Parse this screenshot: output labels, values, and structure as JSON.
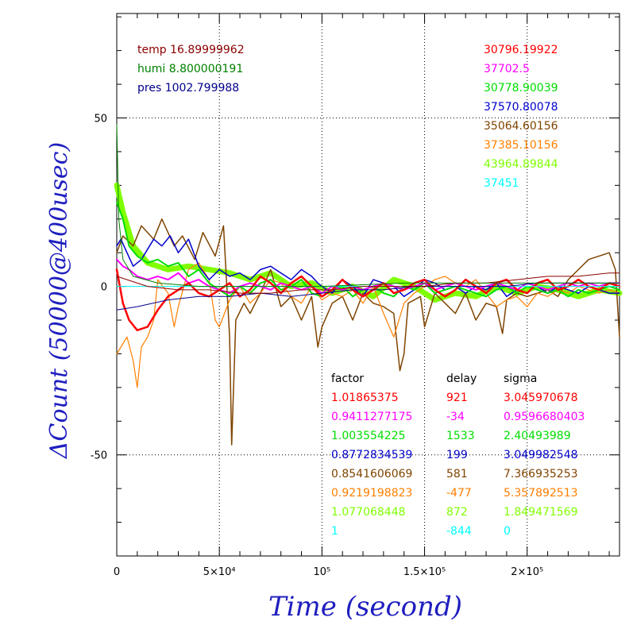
{
  "chart_data": {
    "type": "line",
    "xlabel": "Time (second)",
    "ylabel": "ΔCount (50000@400usec)",
    "xlim": [
      0,
      245000
    ],
    "ylim": [
      -80,
      81
    ],
    "grid": true,
    "x_ticks": [
      {
        "value": 0,
        "label": "0"
      },
      {
        "value": 50000,
        "label": "5×10⁴"
      },
      {
        "value": 100000,
        "label": "10⁵"
      },
      {
        "value": 150000,
        "label": "1.5×10⁵"
      },
      {
        "value": 200000,
        "label": "2×10⁵"
      }
    ],
    "y_ticks": [
      {
        "value": 50,
        "label": "50"
      },
      {
        "value": 0,
        "label": "0"
      },
      {
        "value": -50,
        "label": "-50"
      }
    ],
    "env_labels": [
      {
        "text": "temp 16.89999962",
        "color": "#8b0000"
      },
      {
        "text": "humi 8.800000191",
        "color": "#008000"
      },
      {
        "text": "pres 1002.799988",
        "color": "#00008b"
      }
    ],
    "means": [
      {
        "text": "30796.19922",
        "color": "#ff0000"
      },
      {
        "text": "37702.5",
        "color": "#ff00ff"
      },
      {
        "text": "30778.90039",
        "color": "#00dd00"
      },
      {
        "text": "37570.80078",
        "color": "#0000cc"
      },
      {
        "text": "35064.60156",
        "color": "#7f4400"
      },
      {
        "text": "37385.10156",
        "color": "#ff7f00"
      },
      {
        "text": "43964.89844",
        "color": "#7fff00"
      },
      {
        "text": "37451",
        "color": "#00ffff"
      }
    ],
    "table_headers": [
      "factor",
      "delay",
      "sigma"
    ],
    "table_rows": [
      {
        "factor": "1.01865375",
        "delay": "921",
        "sigma": "3.045970678",
        "color": "#ff0000"
      },
      {
        "factor": "0.9411277175",
        "delay": "-34",
        "sigma": "0.9596680403",
        "color": "#ff00ff"
      },
      {
        "factor": "1.003554225",
        "delay": "1533",
        "sigma": "2.40493989",
        "color": "#00dd00"
      },
      {
        "factor": "0.8772834539",
        "delay": "199",
        "sigma": "3.049982548",
        "color": "#0000cc"
      },
      {
        "factor": "0.8541606069",
        "delay": "581",
        "sigma": "7.366935253",
        "color": "#7f4400"
      },
      {
        "factor": "0.9219198823",
        "delay": "-477",
        "sigma": "5.357892513",
        "color": "#ff7f00"
      },
      {
        "factor": "1.077068448",
        "delay": "872",
        "sigma": "1.849471569",
        "color": "#7fff00"
      },
      {
        "factor": "1",
        "delay": "-844",
        "sigma": "0",
        "color": "#00ffff"
      }
    ],
    "series": [
      {
        "color": "#7fff00",
        "width": 7,
        "x": [
          0,
          3000,
          8000,
          15000,
          25000,
          35000,
          45000,
          55000,
          65000,
          75000,
          85000,
          95000,
          105000,
          115000,
          125000,
          135000,
          145000,
          155000,
          165000,
          175000,
          185000,
          195000,
          205000,
          215000,
          225000,
          235000,
          245000
        ],
        "y": [
          30,
          22,
          12,
          7,
          5,
          6,
          5,
          4,
          2,
          4,
          0,
          1,
          -2,
          0,
          -3,
          2,
          0,
          -4,
          -2,
          -3,
          0,
          -2,
          0,
          -1,
          -3,
          -1,
          -2
        ]
      },
      {
        "color": "#7f4400",
        "width": 1.5,
        "x": [
          0,
          3000,
          8000,
          12000,
          18000,
          22000,
          28000,
          32000,
          38000,
          42000,
          48000,
          52000,
          55000,
          56000,
          58000,
          62000,
          65000,
          70000,
          75000,
          80000,
          85000,
          90000,
          95000,
          98000,
          100000,
          105000,
          110000,
          115000,
          120000,
          125000,
          130000,
          135000,
          138000,
          140000,
          142000,
          148000,
          150000,
          152000,
          155000,
          160000,
          165000,
          170000,
          175000,
          180000,
          185000,
          188000,
          190000,
          195000,
          200000,
          205000,
          210000,
          215000,
          220000,
          225000,
          230000,
          235000,
          240000,
          243000,
          245000
        ],
        "y": [
          10,
          15,
          12,
          18,
          14,
          20,
          12,
          15,
          8,
          16,
          9,
          18,
          -15,
          -47,
          -10,
          -5,
          -8,
          -2,
          5,
          -6,
          -3,
          -10,
          -3,
          -18,
          -12,
          -5,
          -3,
          -10,
          -2,
          -5,
          -6,
          -8,
          -25,
          -20,
          -5,
          -3,
          -12,
          -8,
          -2,
          -5,
          -8,
          -2,
          -10,
          -5,
          -6,
          -14,
          -4,
          -2,
          -3,
          -2,
          -1,
          -3,
          2,
          5,
          8,
          9,
          10,
          5,
          -15
        ]
      },
      {
        "color": "#ff7f00",
        "width": 1.2,
        "x": [
          0,
          2000,
          5000,
          8000,
          10000,
          12000,
          15000,
          18000,
          20000,
          25000,
          28000,
          30000,
          35000,
          40000,
          45000,
          48000,
          50000,
          55000,
          60000,
          65000,
          70000,
          75000,
          80000,
          85000,
          90000,
          95000,
          100000,
          105000,
          110000,
          115000,
          120000,
          125000,
          130000,
          135000,
          140000,
          145000,
          150000,
          155000,
          160000,
          165000,
          170000,
          175000,
          180000,
          185000,
          190000,
          195000,
          200000,
          205000,
          210000,
          215000,
          220000,
          225000,
          230000,
          235000,
          240000,
          245000
        ],
        "y": [
          -20,
          -18,
          -15,
          -22,
          -30,
          -18,
          -15,
          -10,
          2,
          -2,
          -12,
          -6,
          5,
          7,
          2,
          -10,
          -12,
          -4,
          0,
          -5,
          -2,
          2,
          1,
          -3,
          -5,
          0,
          -4,
          -2,
          -3,
          -1,
          -5,
          0,
          -8,
          -15,
          -5,
          -2,
          0,
          2,
          3,
          1,
          0,
          2,
          -2,
          -6,
          -4,
          -3,
          -6,
          -2,
          -3,
          -1,
          -2,
          0,
          -1,
          -2,
          -1,
          -2
        ]
      },
      {
        "color": "#0000cc",
        "width": 1.5,
        "x": [
          0,
          2000,
          5000,
          8000,
          12000,
          18000,
          22000,
          26000,
          30000,
          35000,
          40000,
          45000,
          50000,
          55000,
          60000,
          65000,
          70000,
          75000,
          80000,
          85000,
          90000,
          95000,
          98000,
          100000,
          105000,
          110000,
          115000,
          120000,
          125000,
          130000,
          135000,
          140000,
          145000,
          150000,
          155000,
          160000,
          165000,
          170000,
          175000,
          180000,
          185000,
          190000,
          195000,
          200000,
          205000,
          210000,
          215000,
          220000,
          225000,
          230000,
          235000,
          240000,
          245000
        ],
        "y": [
          12,
          14,
          10,
          6,
          8,
          14,
          12,
          15,
          10,
          14,
          6,
          2,
          5,
          3,
          4,
          2,
          5,
          6,
          4,
          2,
          5,
          3,
          1,
          0,
          -2,
          2,
          0,
          -3,
          2,
          1,
          0,
          -3,
          -1,
          2,
          1,
          -1,
          0,
          -2,
          0,
          -1,
          1,
          -3,
          -1,
          1,
          0,
          -2,
          0,
          -1,
          -2,
          0,
          -1,
          -2,
          -2
        ]
      },
      {
        "color": "#00dd00",
        "width": 2,
        "x": [
          0,
          3000,
          6000,
          10000,
          15000,
          20000,
          25000,
          30000,
          35000,
          40000,
          45000,
          50000,
          55000,
          60000,
          65000,
          70000,
          75000,
          80000,
          85000,
          90000,
          95000,
          100000,
          105000,
          110000,
          115000,
          120000,
          125000,
          130000,
          135000,
          140000,
          145000,
          150000,
          155000,
          160000,
          165000,
          170000,
          175000,
          180000,
          185000,
          190000,
          195000,
          200000,
          205000,
          210000,
          215000,
          220000,
          225000,
          230000,
          235000,
          240000,
          245000
        ],
        "y": [
          25,
          20,
          12,
          9,
          7,
          8,
          6,
          7,
          3,
          5,
          1,
          -1,
          -3,
          0,
          -2,
          1,
          2,
          -1,
          0,
          2,
          -2,
          -3,
          -1,
          0,
          -3,
          -1,
          0,
          -2,
          -3,
          0,
          -1,
          1,
          -2,
          -1,
          0,
          -1,
          -2,
          -3,
          -1,
          0,
          -2,
          0,
          -1,
          -2,
          -1,
          -3,
          -1,
          -2,
          -1,
          0,
          -1
        ]
      },
      {
        "color": "#ff00ff",
        "width": 2,
        "x": [
          0,
          3000,
          6000,
          10000,
          15000,
          20000,
          25000,
          30000,
          35000,
          40000,
          45000,
          50000,
          55000,
          60000,
          65000,
          70000,
          75000,
          80000,
          85000,
          90000,
          95000,
          100000,
          105000,
          110000,
          115000,
          120000,
          125000,
          130000,
          135000,
          140000,
          145000,
          150000,
          155000,
          160000,
          165000,
          170000,
          175000,
          180000,
          185000,
          190000,
          195000,
          200000,
          205000,
          210000,
          215000,
          220000,
          225000,
          230000,
          235000,
          240000,
          245000
        ],
        "y": [
          8,
          6,
          5,
          3,
          2,
          3,
          2,
          4,
          1,
          2,
          0,
          -1,
          -2,
          0,
          1,
          0,
          -1,
          1,
          0,
          -1,
          0,
          -2,
          0,
          -1,
          0,
          -1,
          0,
          1,
          0,
          -1,
          0,
          1,
          -1,
          0,
          1,
          0,
          -1,
          0,
          1,
          0,
          -1,
          1,
          0,
          -1,
          0,
          1,
          0,
          1,
          0,
          1,
          1
        ]
      },
      {
        "color": "#ff0000",
        "width": 2.5,
        "x": [
          0,
          3000,
          6000,
          10000,
          15000,
          20000,
          25000,
          30000,
          35000,
          40000,
          45000,
          50000,
          55000,
          60000,
          65000,
          70000,
          75000,
          80000,
          85000,
          90000,
          95000,
          100000,
          105000,
          110000,
          115000,
          120000,
          125000,
          130000,
          135000,
          140000,
          145000,
          150000,
          155000,
          160000,
          165000,
          170000,
          175000,
          180000,
          185000,
          190000,
          195000,
          200000,
          205000,
          210000,
          215000,
          220000,
          225000,
          230000,
          235000,
          240000,
          245000
        ],
        "y": [
          5,
          -5,
          -10,
          -13,
          -12,
          -7,
          -3,
          -1,
          1,
          -2,
          -3,
          -1,
          1,
          -3,
          -1,
          3,
          1,
          -2,
          1,
          3,
          0,
          -3,
          -1,
          2,
          -1,
          -3,
          -1,
          1,
          -2,
          -1,
          1,
          2,
          -1,
          -3,
          -1,
          2,
          0,
          -2,
          1,
          2,
          -1,
          -2,
          1,
          2,
          -1,
          0,
          2,
          0,
          -1,
          1,
          0
        ]
      },
      {
        "color": "#00ffff",
        "width": 1,
        "x": [
          0,
          5000,
          20000,
          50000,
          100000,
          150000,
          200000,
          245000
        ],
        "y": [
          0,
          0,
          0,
          0,
          0,
          0,
          0,
          0
        ]
      },
      {
        "color": "#00008b",
        "width": 1,
        "x": [
          0,
          10000,
          25000,
          40000,
          55000,
          70000,
          85000,
          100000,
          115000,
          130000,
          145000,
          160000,
          175000,
          190000,
          205000,
          220000,
          235000,
          245000
        ],
        "y": [
          -7,
          -6,
          -4,
          -3,
          -3,
          -2,
          -3,
          -2,
          -1,
          -1,
          0,
          0,
          0,
          0,
          1,
          1,
          1,
          1
        ]
      },
      {
        "color": "#8b0000",
        "width": 1,
        "x": [
          0,
          5000,
          15000,
          30000,
          45000,
          60000,
          75000,
          90000,
          105000,
          120000,
          135000,
          150000,
          165000,
          180000,
          195000,
          210000,
          225000,
          240000,
          245000
        ],
        "y": [
          3,
          2,
          0,
          -1,
          -1,
          -2,
          -2,
          -1,
          -1,
          0,
          0,
          0,
          1,
          1,
          2,
          3,
          3,
          4,
          4
        ]
      },
      {
        "color": "#008000",
        "width": 1,
        "x": [
          0,
          1000,
          3000,
          8000,
          20000,
          40000,
          70000,
          100000,
          140000,
          180000,
          220000,
          245000
        ],
        "y": [
          48,
          20,
          8,
          3,
          1,
          0,
          0,
          0,
          1,
          1,
          1,
          1
        ]
      }
    ]
  }
}
